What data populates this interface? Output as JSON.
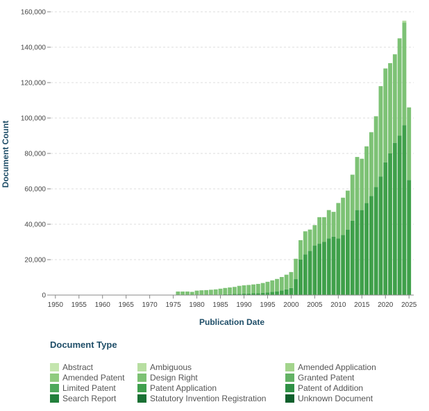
{
  "chart_data": {
    "type": "bar",
    "stacked": true,
    "xlabel": "Publication Date",
    "ylabel": "Document Count",
    "xlim": [
      1949,
      2026
    ],
    "ylim": [
      0,
      160000
    ],
    "x_ticks": [
      1950,
      1955,
      1960,
      1965,
      1970,
      1975,
      1980,
      1985,
      1990,
      1995,
      2000,
      2005,
      2010,
      2015,
      2020,
      2025
    ],
    "y_ticks": [
      {
        "value": 0,
        "label": "0"
      },
      {
        "value": 20000,
        "label": "20,000"
      },
      {
        "value": 40000,
        "label": "40,000"
      },
      {
        "value": 60000,
        "label": "60,000"
      },
      {
        "value": 80000,
        "label": "80,000"
      },
      {
        "value": 100000,
        "label": "100,000"
      },
      {
        "value": 120000,
        "label": "120,000"
      },
      {
        "value": 140000,
        "label": "140,000"
      },
      {
        "value": 160000,
        "label": "160,000"
      }
    ],
    "years": [
      1976,
      1977,
      1978,
      1979,
      1980,
      1981,
      1982,
      1983,
      1984,
      1985,
      1986,
      1987,
      1988,
      1989,
      1990,
      1991,
      1992,
      1993,
      1994,
      1995,
      1996,
      1997,
      1998,
      1999,
      2000,
      2001,
      2002,
      2003,
      2004,
      2005,
      2006,
      2007,
      2008,
      2009,
      2010,
      2011,
      2012,
      2013,
      2014,
      2015,
      2016,
      2017,
      2018,
      2019,
      2020,
      2021,
      2022,
      2023,
      2024,
      2025
    ],
    "series": [
      {
        "name": "Patent Application",
        "color": "#3fa04a",
        "values": [
          0,
          0,
          0,
          0,
          0,
          0,
          0,
          0,
          200,
          300,
          400,
          500,
          600,
          700,
          800,
          900,
          1000,
          1100,
          1300,
          1500,
          1800,
          2100,
          2600,
          3200,
          4000,
          9000,
          20000,
          23000,
          25000,
          28000,
          29000,
          30000,
          32000,
          33000,
          32000,
          34000,
          37000,
          42000,
          48000,
          48000,
          52000,
          56000,
          61000,
          67000,
          75000,
          80000,
          86000,
          90000,
          96000,
          65000
        ]
      },
      {
        "name": "Granted Patent",
        "color": "#7dc275",
        "values": [
          2000,
          2000,
          2000,
          1800,
          2500,
          2700,
          2800,
          3000,
          3000,
          3300,
          3600,
          3800,
          4000,
          4500,
          4700,
          4800,
          5000,
          5200,
          5500,
          6000,
          6500,
          7000,
          7600,
          8300,
          9000,
          11500,
          11000,
          13000,
          12000,
          11500,
          15000,
          14000,
          16000,
          14000,
          20000,
          21000,
          22000,
          26000,
          30000,
          29000,
          32000,
          36000,
          40000,
          51000,
          53000,
          51000,
          50000,
          55000,
          58000,
          41000
        ]
      },
      {
        "name": "Design Right",
        "color": "#b1dc9d",
        "values": [
          0,
          0,
          0,
          0,
          0,
          0,
          0,
          0,
          0,
          0,
          0,
          0,
          0,
          0,
          0,
          0,
          0,
          0,
          0,
          0,
          0,
          0,
          0,
          0,
          0,
          0,
          0,
          0,
          0,
          0,
          0,
          0,
          0,
          0,
          0,
          0,
          0,
          0,
          0,
          0,
          0,
          0,
          0,
          0,
          0,
          0,
          0,
          0,
          1000,
          0
        ]
      }
    ],
    "legend_title": "Document Type",
    "legend": [
      {
        "name": "Abstract",
        "color": "#c4e5ae"
      },
      {
        "name": "Ambiguous",
        "color": "#b7dea1"
      },
      {
        "name": "Amended Application",
        "color": "#a3d48c"
      },
      {
        "name": "Amended Patent",
        "color": "#8fcb7f"
      },
      {
        "name": "Design Right",
        "color": "#7cc173"
      },
      {
        "name": "Granted Patent",
        "color": "#63b265"
      },
      {
        "name": "Limited Patent",
        "color": "#4ea95b"
      },
      {
        "name": "Patent Application",
        "color": "#3f9f4d"
      },
      {
        "name": "Patent of Addition",
        "color": "#2f9045"
      },
      {
        "name": "Search Report",
        "color": "#23803c"
      },
      {
        "name": "Statutory Invention Registration",
        "color": "#197034"
      },
      {
        "name": "Unknown Document",
        "color": "#0f5f2c"
      }
    ]
  }
}
